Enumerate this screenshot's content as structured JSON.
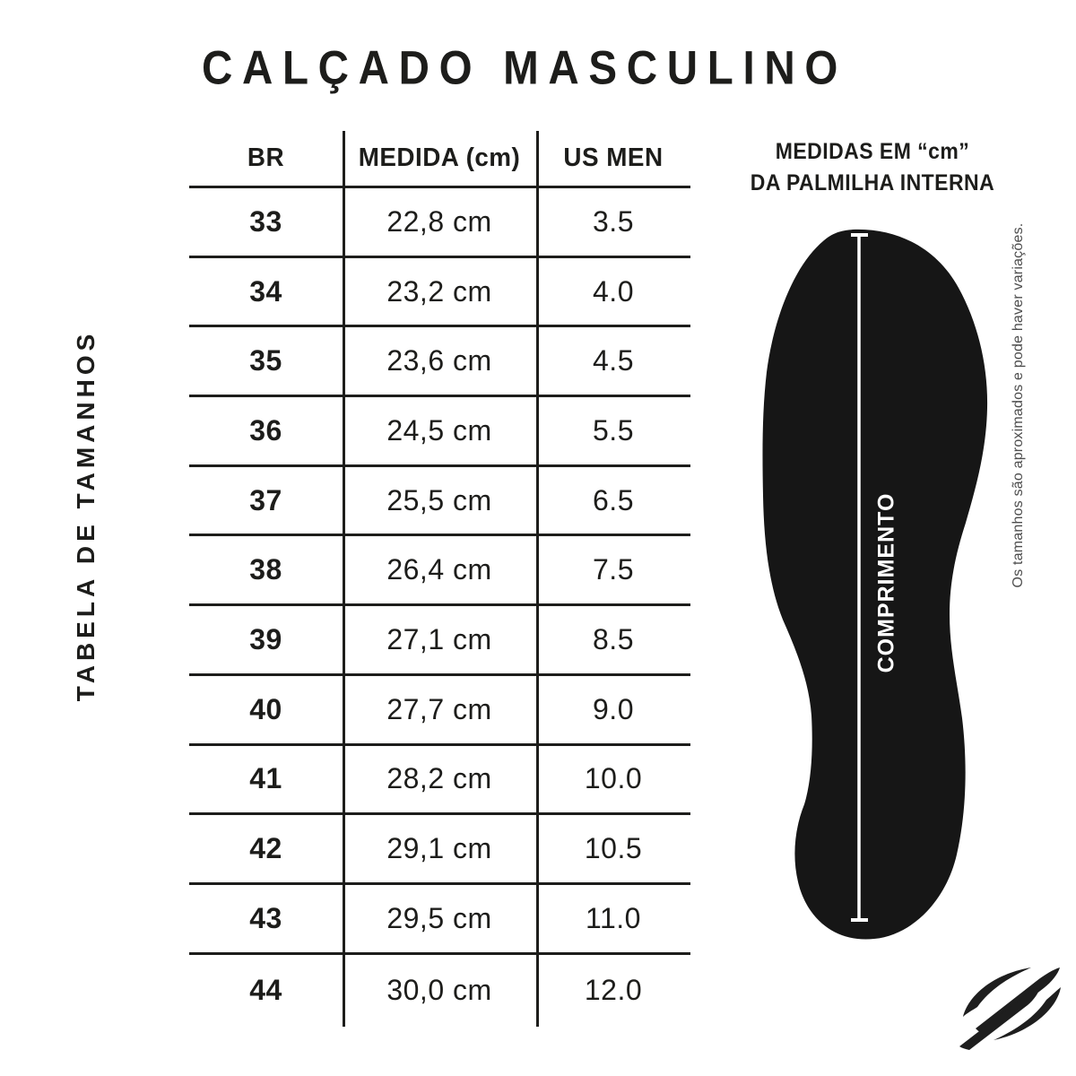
{
  "title": "CALÇADO MASCULINO",
  "side_label": "TABELA DE TAMANHOS",
  "chart_data": {
    "type": "table",
    "title": "CALÇADO MASCULINO",
    "columns": [
      "BR",
      "MEDIDA (cm)",
      "US MEN"
    ],
    "rows": [
      [
        "33",
        "22,8 cm",
        "3.5"
      ],
      [
        "34",
        "23,2 cm",
        "4.0"
      ],
      [
        "35",
        "23,6 cm",
        "4.5"
      ],
      [
        "36",
        "24,5 cm",
        "5.5"
      ],
      [
        "37",
        "25,5 cm",
        "6.5"
      ],
      [
        "38",
        "26,4 cm",
        "7.5"
      ],
      [
        "39",
        "27,1 cm",
        "8.5"
      ],
      [
        "40",
        "27,7 cm",
        "9.0"
      ],
      [
        "41",
        "28,2 cm",
        "10.0"
      ],
      [
        "42",
        "29,1 cm",
        "10.5"
      ],
      [
        "43",
        "29,5 cm",
        "11.0"
      ],
      [
        "44",
        "30,0 cm",
        "12.0"
      ]
    ],
    "notes": "Os tamanhos são aproximados e pode haver variações."
  },
  "insole_panel": {
    "heading_line1": "MEDIDAS EM “cm”",
    "heading_line2": "DA PALMILHA INTERNA",
    "length_label": "COMPRIMENTO",
    "disclaimer": "Os tamanhos são aproximados e pode haver variações."
  },
  "logo": {
    "name": "mormaii-logo"
  },
  "colors": {
    "ink": "#1d1d1b",
    "insole_fill": "#161616",
    "measure_line": "#ffffff",
    "disclaimer_text": "#4d4d4d",
    "background": "#ffffff"
  }
}
